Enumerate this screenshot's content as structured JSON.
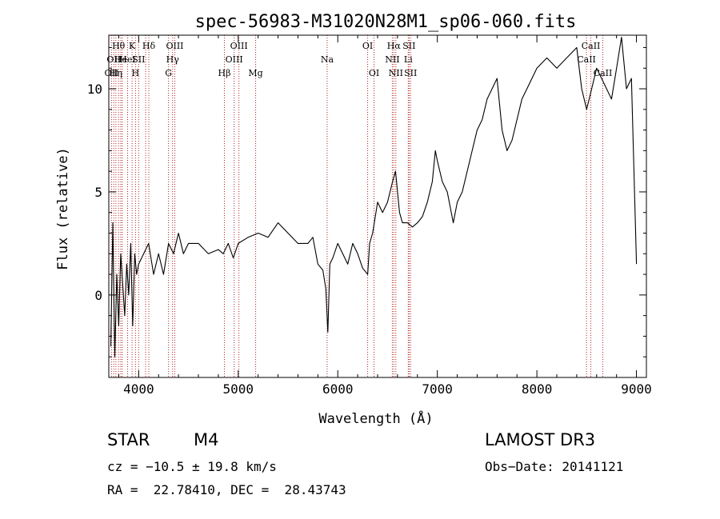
{
  "chart_data": {
    "type": "line",
    "title": "spec-56983-M31020N28M1_sp06-060.fits",
    "xlabel": "Wavelength (Å)",
    "ylabel": "Flux (relative)",
    "xlim": [
      3700,
      9100
    ],
    "ylim": [
      -4,
      12.6
    ],
    "xticks": [
      4000,
      5000,
      6000,
      7000,
      8000,
      9000
    ],
    "yticks": [
      0,
      5,
      10
    ],
    "series": [
      {
        "name": "flux",
        "x": [
          3720,
          3740,
          3760,
          3780,
          3800,
          3820,
          3840,
          3860,
          3880,
          3900,
          3920,
          3940,
          3960,
          3980,
          4000,
          4050,
          4100,
          4150,
          4200,
          4250,
          4300,
          4350,
          4400,
          4450,
          4500,
          4600,
          4700,
          4800,
          4850,
          4900,
          4950,
          5000,
          5100,
          5200,
          5300,
          5400,
          5500,
          5600,
          5700,
          5750,
          5800,
          5850,
          5880,
          5900,
          5920,
          5950,
          6000,
          6050,
          6100,
          6150,
          6200,
          6250,
          6300,
          6320,
          6350,
          6400,
          6450,
          6500,
          6550,
          6580,
          6600,
          6620,
          6650,
          6700,
          6750,
          6800,
          6850,
          6900,
          6950,
          6980,
          7000,
          7050,
          7100,
          7140,
          7160,
          7200,
          7250,
          7300,
          7350,
          7400,
          7450,
          7500,
          7550,
          7600,
          7650,
          7700,
          7750,
          7800,
          7850,
          7900,
          7950,
          8000,
          8100,
          8200,
          8300,
          8400,
          8450,
          8500,
          8550,
          8600,
          8650,
          8700,
          8750,
          8800,
          8850,
          8900,
          8950,
          9000
        ],
        "y": [
          -2.5,
          3.5,
          -3.0,
          1.0,
          -1.5,
          2.0,
          0.5,
          -1.0,
          1.5,
          0.0,
          2.5,
          -1.5,
          2.0,
          1.0,
          1.5,
          2.0,
          2.5,
          1.0,
          2.0,
          1.0,
          2.5,
          2.0,
          3.0,
          2.0,
          2.5,
          2.5,
          2.0,
          2.2,
          2.0,
          2.5,
          1.8,
          2.5,
          2.8,
          3.0,
          2.8,
          3.5,
          3.0,
          2.5,
          2.5,
          2.8,
          1.5,
          1.2,
          0.3,
          -1.8,
          1.5,
          1.8,
          2.5,
          2.0,
          1.5,
          2.5,
          2.0,
          1.3,
          1.0,
          2.5,
          3.0,
          4.5,
          4.0,
          4.5,
          5.5,
          6.0,
          5.0,
          4.0,
          3.5,
          3.5,
          3.3,
          3.5,
          3.8,
          4.5,
          5.5,
          7.0,
          6.5,
          5.5,
          5.0,
          4.0,
          3.5,
          4.5,
          5.0,
          6.0,
          7.0,
          8.0,
          8.5,
          9.5,
          10.0,
          10.5,
          8.0,
          7.0,
          7.5,
          8.5,
          9.5,
          10.0,
          10.5,
          11.0,
          11.5,
          11.0,
          11.5,
          12.0,
          10.0,
          9.0,
          10.0,
          11.0,
          10.5,
          10.0,
          9.5,
          11.0,
          12.5,
          10.0,
          10.5,
          1.5
        ]
      }
    ],
    "lines": [
      {
        "wave": 3727,
        "row": 2,
        "label": "OII"
      },
      {
        "wave": 3750,
        "row": 1,
        "label": "OII"
      },
      {
        "wave": 3771,
        "row": 2,
        "label": "Hη"
      },
      {
        "wave": 3798,
        "row": 0,
        "label": "Hθ"
      },
      {
        "wave": 3820,
        "row": 1,
        "label": "He"
      },
      {
        "wave": 3835,
        "row": 0,
        "label": ""
      },
      {
        "wave": 3889,
        "row": 1,
        "label": "HeI"
      },
      {
        "wave": 3934,
        "row": 0,
        "label": "K"
      },
      {
        "wave": 3968,
        "row": 2,
        "label": "H"
      },
      {
        "wave": 4000,
        "row": 1,
        "label": "SII"
      },
      {
        "wave": 4070,
        "row": 1,
        "label": ""
      },
      {
        "wave": 4102,
        "row": 0,
        "label": "Hδ"
      },
      {
        "wave": 4300,
        "row": 2,
        "label": "G"
      },
      {
        "wave": 4341,
        "row": 1,
        "label": "Hγ"
      },
      {
        "wave": 4363,
        "row": 0,
        "label": "OIII"
      },
      {
        "wave": 4861,
        "row": 2,
        "label": "Hβ"
      },
      {
        "wave": 4959,
        "row": 1,
        "label": "OIII"
      },
      {
        "wave": 5007,
        "row": 0,
        "label": "OIII"
      },
      {
        "wave": 5175,
        "row": 2,
        "label": "Mg"
      },
      {
        "wave": 5893,
        "row": 1,
        "label": "Na"
      },
      {
        "wave": 6300,
        "row": 0,
        "label": "OI"
      },
      {
        "wave": 6364,
        "row": 2,
        "label": "OI"
      },
      {
        "wave": 6548,
        "row": 1,
        "label": "NII"
      },
      {
        "wave": 6563,
        "row": 0,
        "label": "Hα"
      },
      {
        "wave": 6583,
        "row": 2,
        "label": "NII"
      },
      {
        "wave": 6708,
        "row": 1,
        "label": "Li"
      },
      {
        "wave": 6716,
        "row": 0,
        "label": "SII"
      },
      {
        "wave": 6731,
        "row": 2,
        "label": "SII"
      },
      {
        "wave": 8498,
        "row": 1,
        "label": "CaII"
      },
      {
        "wave": 8542,
        "row": 0,
        "label": "CaII"
      },
      {
        "wave": 8662,
        "row": 2,
        "label": "CaII"
      }
    ]
  },
  "info": {
    "obj_class": "STAR",
    "subclass": "M4",
    "survey": "LAMOST DR3",
    "cz": "cz = −10.5 ± 19.8 km/s",
    "obs_date": "Obs−Date: 20141121",
    "radec": "RA =  22.78410, DEC =  28.43743"
  }
}
